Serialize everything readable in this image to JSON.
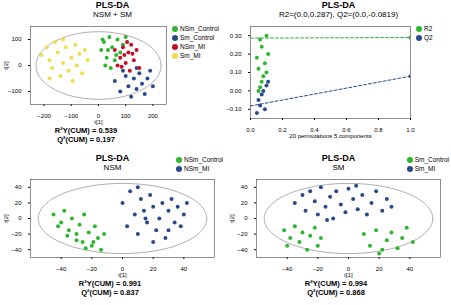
{
  "chart_data": [
    {
      "type": "scatter",
      "title": "PLS-DA",
      "subtitle": "NSM + SM",
      "x_label": "t[1]",
      "y_label": "t[2]",
      "xlim": [
        -250,
        250
      ],
      "ylim": [
        -150,
        150
      ],
      "xticks": [
        -200,
        -100,
        0,
        100,
        200
      ],
      "yticks": [
        -100,
        0,
        100
      ],
      "grid": false,
      "legend": "right",
      "ellipse_radii": [
        230,
        130
      ],
      "annotations": [
        "R²Y(CUM) = 0.539",
        "Q²(CUM) = 0.197"
      ],
      "series": [
        {
          "name": "NSm_Control",
          "color": "#2fb52f",
          "values": [
            [
              10,
              60
            ],
            [
              20,
              90
            ],
            [
              30,
              30
            ],
            [
              40,
              110
            ],
            [
              50,
              70
            ],
            [
              60,
              20
            ],
            [
              70,
              100
            ],
            [
              80,
              50
            ],
            [
              25,
              0
            ],
            [
              90,
              80
            ],
            [
              45,
              -10
            ],
            [
              15,
              100
            ],
            [
              65,
              40
            ],
            [
              100,
              110
            ],
            [
              35,
              60
            ]
          ]
        },
        {
          "name": "Sm_Control",
          "color": "#2b4a8c",
          "values": [
            [
              60,
              -60
            ],
            [
              80,
              -100
            ],
            [
              100,
              -40
            ],
            [
              110,
              -80
            ],
            [
              120,
              -120
            ],
            [
              130,
              -50
            ],
            [
              140,
              -90
            ],
            [
              150,
              -30
            ],
            [
              160,
              -70
            ],
            [
              170,
              -110
            ],
            [
              180,
              -50
            ],
            [
              190,
              -20
            ],
            [
              90,
              -20
            ],
            [
              200,
              -80
            ],
            [
              140,
              -10
            ]
          ]
        },
        {
          "name": "NSm_MI",
          "color": "#c0102a",
          "values": [
            [
              60,
              60
            ],
            [
              80,
              30
            ],
            [
              90,
              70
            ],
            [
              100,
              10
            ],
            [
              110,
              50
            ],
            [
              120,
              80
            ],
            [
              130,
              20
            ],
            [
              140,
              60
            ],
            [
              150,
              -10
            ],
            [
              70,
              0
            ],
            [
              95,
              40
            ],
            [
              115,
              -20
            ],
            [
              125,
              45
            ],
            [
              105,
              90
            ],
            [
              85,
              -5
            ]
          ]
        },
        {
          "name": "Sm_MI",
          "color": "#f2dc4c",
          "values": [
            [
              -210,
              40
            ],
            [
              -190,
              70
            ],
            [
              -180,
              20
            ],
            [
              -170,
              -10
            ],
            [
              -160,
              90
            ],
            [
              -150,
              50
            ],
            [
              -140,
              -40
            ],
            [
              -130,
              10
            ],
            [
              -120,
              70
            ],
            [
              -110,
              -20
            ],
            [
              -100,
              30
            ],
            [
              -95,
              -60
            ],
            [
              -85,
              80
            ],
            [
              -80,
              0
            ],
            [
              -70,
              45
            ],
            [
              -60,
              -30
            ],
            [
              -50,
              60
            ],
            [
              -180,
              -50
            ],
            [
              -130,
              100
            ],
            [
              -40,
              20
            ]
          ]
        }
      ]
    },
    {
      "type": "scatter",
      "title": "PLS-DA",
      "subtitle": "R2=(0.0,0.287), Q2=(0.0,-0.0819)",
      "x_label": "20 permutations 5 components",
      "xlim": [
        0,
        1
      ],
      "ylim": [
        -0.15,
        0.35
      ],
      "xticks": [
        0,
        0.2,
        0.4,
        0.6,
        0.8,
        1
      ],
      "yticks": [
        -0.1,
        0,
        0.1,
        0.2,
        0.3
      ],
      "grid": false,
      "legend": "right",
      "series": [
        {
          "name": "R2",
          "color": "#2fb52f",
          "line_style": "dashed",
          "regression_line": [
            [
              0,
              0.287
            ],
            [
              1,
              0.29
            ]
          ],
          "values": [
            [
              0.05,
              0.0
            ],
            [
              0.06,
              0.02
            ],
            [
              0.07,
              0.05
            ],
            [
              0.08,
              0.08
            ],
            [
              0.1,
              0.1
            ],
            [
              0.05,
              0.12
            ],
            [
              0.09,
              0.15
            ],
            [
              0.04,
              0.18
            ],
            [
              0.11,
              0.2
            ],
            [
              0.07,
              0.24
            ],
            [
              0.06,
              0.28
            ],
            [
              0.1,
              0.3
            ],
            [
              1,
              0.29
            ]
          ]
        },
        {
          "name": "Q2",
          "color": "#2b4a8c",
          "line_style": "dashed",
          "regression_line": [
            [
              0,
              -0.0819
            ],
            [
              1,
              0.08
            ]
          ],
          "values": [
            [
              0.05,
              -0.05
            ],
            [
              0.07,
              -0.02
            ],
            [
              0.08,
              0.0
            ],
            [
              0.1,
              0.03
            ],
            [
              0.06,
              -0.08
            ],
            [
              0.09,
              -0.1
            ],
            [
              0.04,
              -0.12
            ],
            [
              0.11,
              0.05
            ],
            [
              1,
              0.08
            ]
          ]
        }
      ]
    },
    {
      "type": "scatter",
      "title": "PLS-DA",
      "subtitle": "NSM",
      "x_label": "t[1]",
      "y_label": "t[2]",
      "xlim": [
        -60,
        60
      ],
      "ylim": [
        -50,
        50
      ],
      "xticks": [
        -40,
        -20,
        0,
        20,
        40
      ],
      "yticks": [
        -40,
        -20,
        0,
        20,
        40
      ],
      "grid": false,
      "legend": "top-right",
      "ellipse_radii": [
        55,
        45
      ],
      "annotations": [
        "R²Y(CUM) = 0.991",
        "Q²(CUM) = 0.837"
      ],
      "series": [
        {
          "name": "NSm_Control",
          "color": "#2fb52f",
          "values": [
            [
              -45,
              5
            ],
            [
              -40,
              -5
            ],
            [
              -38,
              10
            ],
            [
              -35,
              -15
            ],
            [
              -33,
              0
            ],
            [
              -30,
              -20
            ],
            [
              -28,
              -8
            ],
            [
              -26,
              -30
            ],
            [
              -25,
              5
            ],
            [
              -22,
              -18
            ],
            [
              -20,
              -35
            ],
            [
              -18,
              -10
            ],
            [
              -16,
              -25
            ],
            [
              -14,
              -40
            ],
            [
              -12,
              -20
            ],
            [
              -30,
              -28
            ],
            [
              -24,
              -38
            ],
            [
              -36,
              -22
            ],
            [
              -19,
              -30
            ],
            [
              -42,
              -10
            ]
          ]
        },
        {
          "name": "NSm_MI",
          "color": "#2b4a8c",
          "values": [
            [
              0,
              20
            ],
            [
              3,
              -10
            ],
            [
              5,
              35
            ],
            [
              8,
              5
            ],
            [
              10,
              -20
            ],
            [
              12,
              25
            ],
            [
              14,
              10
            ],
            [
              16,
              -5
            ],
            [
              18,
              30
            ],
            [
              20,
              15
            ],
            [
              22,
              -15
            ],
            [
              24,
              0
            ],
            [
              26,
              20
            ],
            [
              28,
              -25
            ],
            [
              30,
              10
            ],
            [
              32,
              25
            ],
            [
              34,
              -5
            ],
            [
              36,
              15
            ],
            [
              38,
              -10
            ],
            [
              40,
              5
            ],
            [
              42,
              20
            ],
            [
              10,
              40
            ],
            [
              20,
              -30
            ],
            [
              30,
              -15
            ],
            [
              15,
              0
            ]
          ]
        }
      ]
    },
    {
      "type": "scatter",
      "title": "PLS-DA",
      "subtitle": "SM",
      "x_label": "t[1]",
      "y_label": "t[2]",
      "xlim": [
        -60,
        60
      ],
      "ylim": [
        -50,
        50
      ],
      "xticks": [
        -40,
        -20,
        0,
        20,
        40
      ],
      "yticks": [
        -40,
        -20,
        0,
        20,
        40
      ],
      "grid": false,
      "legend": "top-right",
      "ellipse_radii": [
        55,
        45
      ],
      "annotations": [
        "R²Y(CUM) = 0.994",
        "Q²(CUM) = 0.868"
      ],
      "series": [
        {
          "name": "Sm_Control",
          "color": "#2fb52f",
          "values": [
            [
              -42,
              -15
            ],
            [
              -38,
              -25
            ],
            [
              -35,
              -10
            ],
            [
              -32,
              -30
            ],
            [
              -30,
              -18
            ],
            [
              -27,
              -40
            ],
            [
              -25,
              -22
            ],
            [
              -22,
              -12
            ],
            [
              -20,
              -35
            ],
            [
              -18,
              -25
            ],
            [
              -40,
              -35
            ],
            [
              10,
              -20
            ],
            [
              14,
              -35
            ],
            [
              18,
              -15
            ],
            [
              22,
              -40
            ],
            [
              25,
              -28
            ],
            [
              28,
              -18
            ],
            [
              32,
              -38
            ],
            [
              35,
              -25
            ],
            [
              38,
              -12
            ],
            [
              42,
              -30
            ],
            [
              20,
              -45
            ]
          ]
        },
        {
          "name": "Sm_MI",
          "color": "#2b4a8c",
          "values": [
            [
              -35,
              20
            ],
            [
              -30,
              30
            ],
            [
              -28,
              10
            ],
            [
              -25,
              35
            ],
            [
              -22,
              22
            ],
            [
              -20,
              5
            ],
            [
              -18,
              40
            ],
            [
              -15,
              15
            ],
            [
              -12,
              28
            ],
            [
              -10,
              0
            ],
            [
              -8,
              35
            ],
            [
              -5,
              18
            ],
            [
              -2,
              8
            ],
            [
              0,
              38
            ],
            [
              3,
              25
            ],
            [
              6,
              12
            ],
            [
              9,
              30
            ],
            [
              12,
              5
            ],
            [
              15,
              20
            ],
            [
              18,
              35
            ],
            [
              22,
              10
            ],
            [
              25,
              25
            ],
            [
              28,
              15
            ],
            [
              -14,
              -2
            ],
            [
              5,
              42
            ]
          ]
        }
      ]
    }
  ]
}
